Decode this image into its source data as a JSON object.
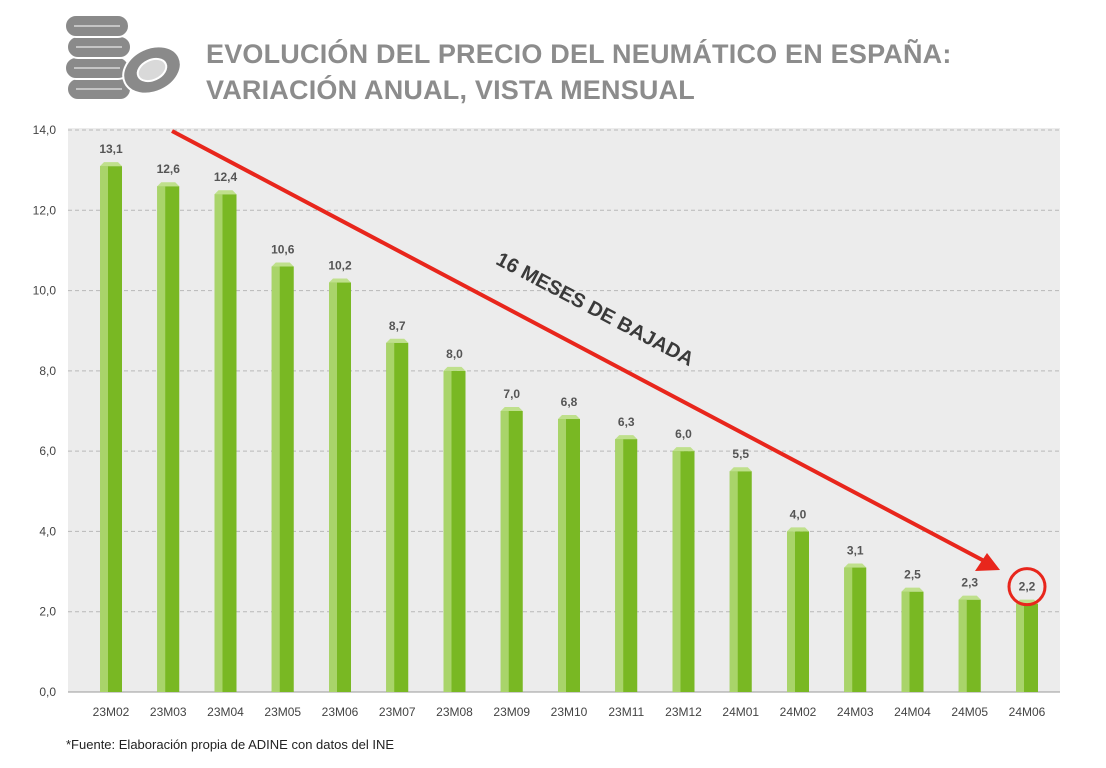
{
  "title": {
    "line1": "EVOLUCIÓN DEL PRECIO DEL NEUMÁTICO EN ESPAÑA:",
    "line2": "VARIACIÓN ANUAL, VISTA MENSUAL"
  },
  "source": "*Fuente: Elaboración propia de ADINE con datos del INE",
  "annotation": {
    "trend_text": "16 MESES DE BAJADA",
    "arrow_color": "#e8261c",
    "highlight_category": "24M06"
  },
  "colors": {
    "bar_front": "#79b823",
    "bar_side": "#a9d46a",
    "bar_top": "#bfe08c",
    "plot_bg": "#ececec",
    "title": "#8c8c8c"
  },
  "icons": {
    "header": "tires-stack-icon"
  },
  "chart_data": {
    "type": "bar",
    "categories": [
      "23M02",
      "23M03",
      "23M04",
      "23M05",
      "23M06",
      "23M07",
      "23M08",
      "23M09",
      "23M10",
      "23M11",
      "23M12",
      "24M01",
      "24M02",
      "24M03",
      "24M04",
      "24M05",
      "24M06"
    ],
    "values": [
      13.1,
      12.6,
      12.4,
      10.6,
      10.2,
      8.7,
      8.0,
      7.0,
      6.8,
      6.3,
      6.0,
      5.5,
      4.0,
      3.1,
      2.5,
      2.3,
      2.2
    ],
    "value_labels": [
      "13,1",
      "12,6",
      "12,4",
      "10,6",
      "10,2",
      "8,7",
      "8,0",
      "7,0",
      "6,8",
      "6,3",
      "6,0",
      "5,5",
      "4,0",
      "3,1",
      "2,5",
      "2,3",
      "2,2"
    ],
    "ylim": [
      0,
      14
    ],
    "yticks": [
      0,
      2,
      4,
      6,
      8,
      10,
      12,
      14
    ],
    "ytick_labels": [
      "0,0",
      "2,0",
      "4,0",
      "6,0",
      "8,0",
      "10,0",
      "12,0",
      "14,0"
    ],
    "xlabel": "",
    "ylabel": "",
    "grid": true,
    "legend": "none"
  }
}
